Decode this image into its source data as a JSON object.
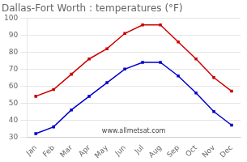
{
  "chart_data": {
    "type": "line",
    "title": "Dallas-Fort Worth : temperatures (°F)",
    "categories": [
      "Jan",
      "Feb",
      "Mar",
      "Apr",
      "May",
      "Jun",
      "Jul",
      "Aug",
      "Sep",
      "Oct",
      "Nov",
      "Dec"
    ],
    "series": [
      {
        "color": "#cc0000",
        "values": [
          54,
          58,
          67,
          76,
          82,
          91,
          96,
          96,
          86,
          76,
          65,
          57
        ]
      },
      {
        "color": "#0000cc",
        "values": [
          32,
          36,
          46,
          54,
          62,
          70,
          74,
          74,
          66,
          56,
          45,
          37
        ]
      }
    ],
    "marker": "square",
    "line_style": "solid",
    "ylim": [
      30,
      100
    ],
    "yticks": [
      30,
      40,
      50,
      60,
      70,
      80,
      90,
      100
    ],
    "grid": true,
    "annotations": [
      "www.allmetsat.com"
    ]
  }
}
